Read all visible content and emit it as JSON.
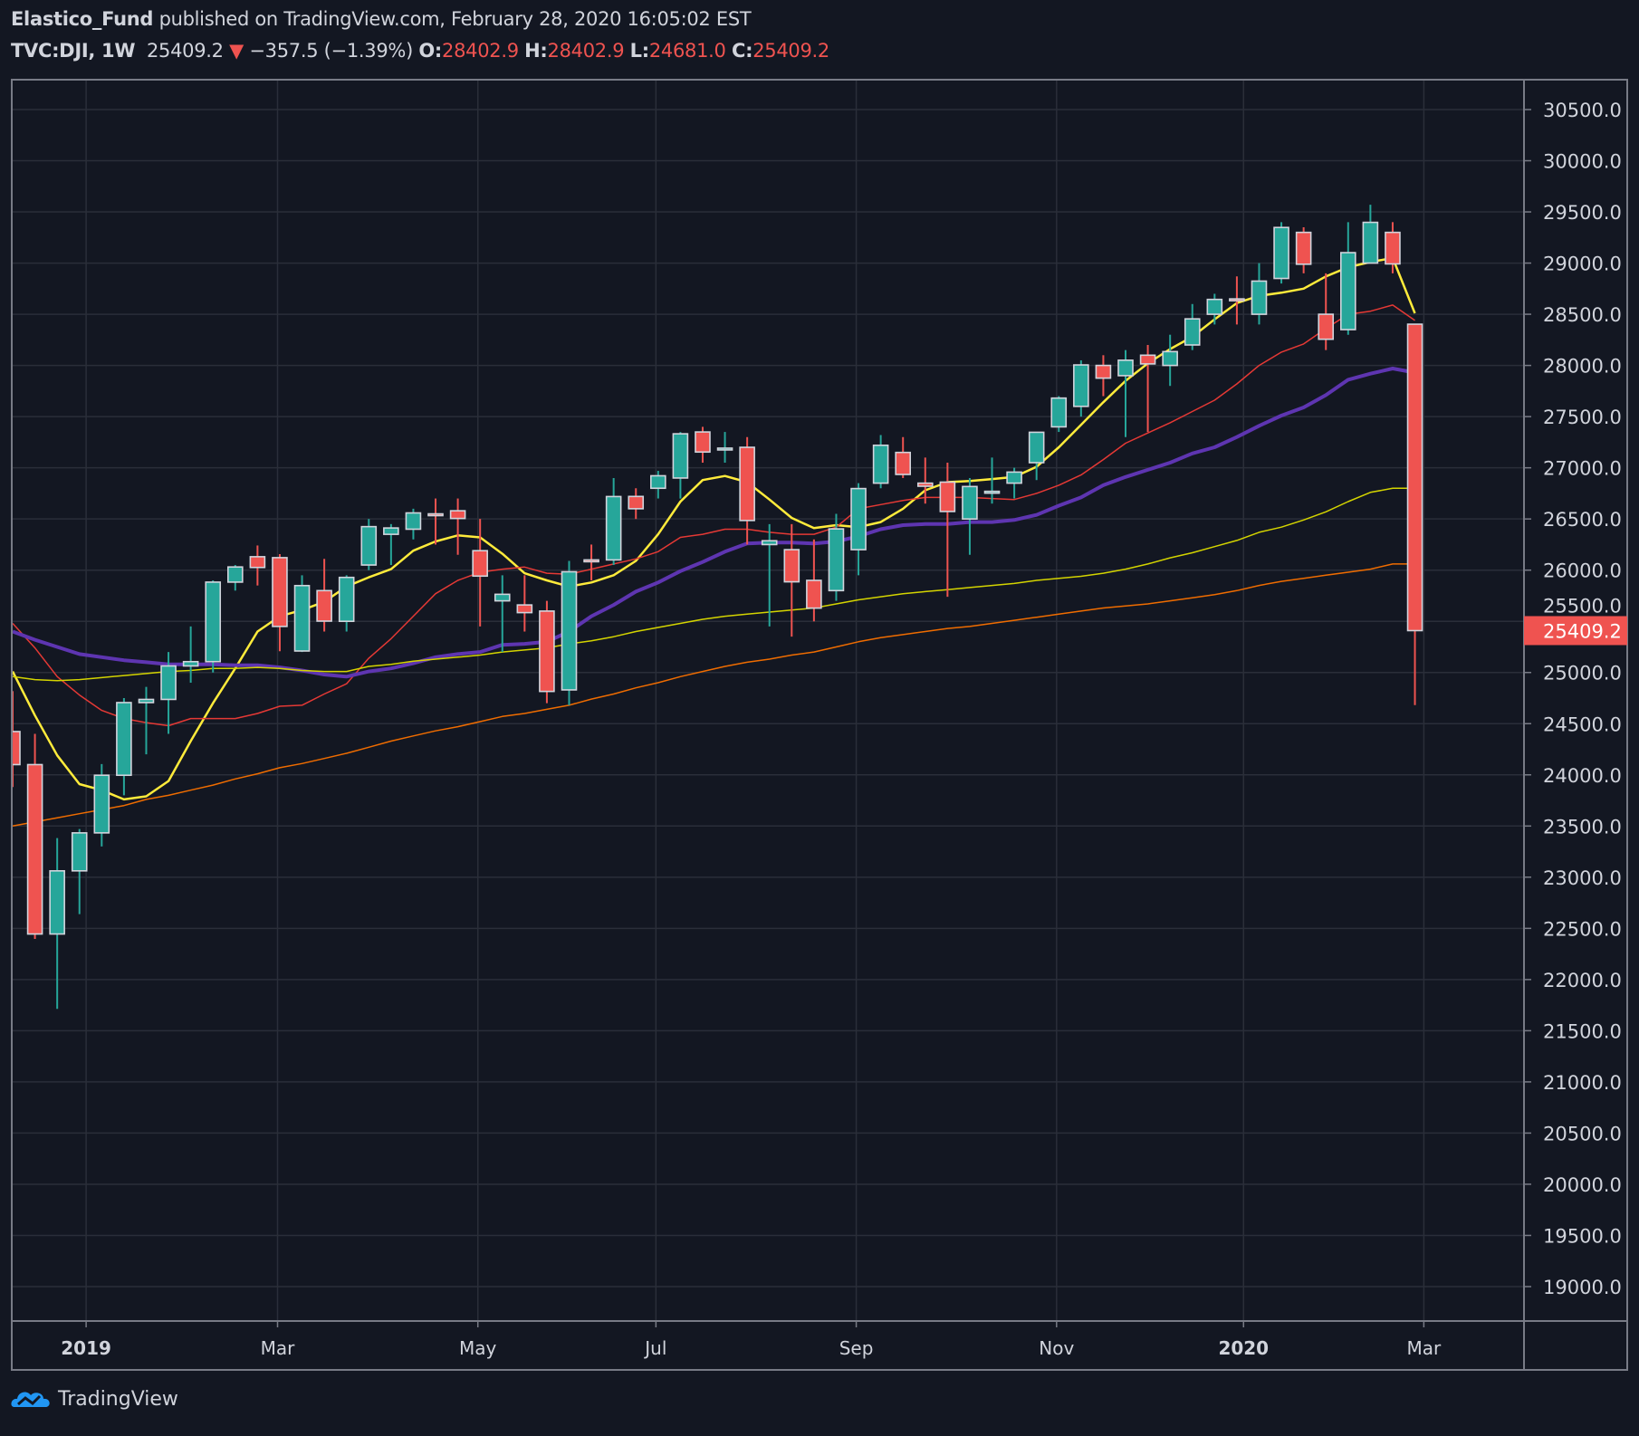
{
  "header": {
    "author": "Elastico_Fund",
    "published": "published on TradingView.com, February 28, 2020 16:05:02 EST",
    "symbol": "TVC:DJI, 1W",
    "last": "25409.2",
    "change": "−357.5 (−1.39%)",
    "o_label": "O:",
    "o": "28402.9",
    "h_label": "H:",
    "h": "28402.9",
    "l_label": "L:",
    "l": "24681.0",
    "c_label": "C:",
    "c": "25409.2"
  },
  "footer": {
    "brand": "TradingView"
  },
  "colors": {
    "background": "#131722",
    "grid": "#2a2e39",
    "up": "#26a69a",
    "down": "#ef5350",
    "text": "#d1d4dc"
  },
  "chart_data": {
    "type": "candlestick",
    "interval": "1W",
    "ylim": [
      18700,
      30800
    ],
    "y_ticks": [
      "30500.0",
      "30000.0",
      "29500.0",
      "29000.0",
      "28500.0",
      "28000.0",
      "27500.0",
      "27000.0",
      "26500.0",
      "26000.0",
      "25500.0",
      "25000.0",
      "24500.0",
      "24000.0",
      "23500.0",
      "23000.0",
      "22500.0",
      "22000.0",
      "21500.0",
      "21000.0",
      "20500.0",
      "20000.0",
      "19500.0",
      "19000.0"
    ],
    "x_ticks": [
      {
        "label": "2019",
        "week": 3.3
      },
      {
        "label": "Mar",
        "week": 11.9
      },
      {
        "label": "May",
        "week": 20.9
      },
      {
        "label": "Jul",
        "week": 28.9
      },
      {
        "label": "Sep",
        "week": 37.9
      },
      {
        "label": "Nov",
        "week": 46.9
      },
      {
        "label": "2020",
        "week": 55.3
      },
      {
        "label": "Mar",
        "week": 63.4
      }
    ],
    "x_tick_bold": [
      "2019",
      "2020"
    ],
    "last_price_label": "25409.2",
    "grid": true,
    "first_week": "2018-12-10",
    "ohlc": [
      [
        24423,
        24818,
        23881,
        24100
      ],
      [
        24100,
        24400,
        22397,
        22445
      ],
      [
        22445,
        23382,
        21713,
        23062
      ],
      [
        23062,
        23471,
        22639,
        23433
      ],
      [
        23433,
        24105,
        23300,
        23996
      ],
      [
        23996,
        24750,
        23800,
        24706
      ],
      [
        24706,
        24860,
        24200,
        24737
      ],
      [
        24737,
        25200,
        24400,
        25064
      ],
      [
        25064,
        25450,
        24900,
        25106
      ],
      [
        25106,
        25900,
        25000,
        25883
      ],
      [
        25883,
        26050,
        25800,
        26031
      ],
      [
        26131,
        26241,
        25850,
        26026
      ],
      [
        26122,
        26156,
        25208,
        25450
      ],
      [
        25210,
        25950,
        25200,
        25849
      ],
      [
        25800,
        26110,
        25400,
        25502
      ],
      [
        25500,
        25950,
        25400,
        25929
      ],
      [
        26050,
        26500,
        26000,
        26425
      ],
      [
        26350,
        26450,
        26050,
        26412
      ],
      [
        26400,
        26600,
        26300,
        26559
      ],
      [
        26550,
        26700,
        26250,
        26543
      ],
      [
        26580,
        26700,
        26150,
        26505
      ],
      [
        26190,
        26500,
        25450,
        25942
      ],
      [
        25700,
        25950,
        25200,
        25764
      ],
      [
        25660,
        25950,
        25400,
        25585
      ],
      [
        25600,
        25700,
        24700,
        24815
      ],
      [
        24830,
        26090,
        24680,
        25984
      ],
      [
        26100,
        26250,
        25900,
        26090
      ],
      [
        26100,
        26900,
        26050,
        26719
      ],
      [
        26720,
        26800,
        26500,
        26600
      ],
      [
        26800,
        26970,
        26700,
        26922
      ],
      [
        26900,
        27350,
        26700,
        27332
      ],
      [
        27350,
        27400,
        27050,
        27154
      ],
      [
        27180,
        27350,
        27050,
        27192
      ],
      [
        27200,
        27300,
        26250,
        26485
      ],
      [
        26250,
        26450,
        25450,
        26287
      ],
      [
        26200,
        26450,
        25350,
        25886
      ],
      [
        25900,
        26300,
        25500,
        25629
      ],
      [
        25800,
        26550,
        25700,
        26403
      ],
      [
        26200,
        26850,
        25950,
        26797
      ],
      [
        26850,
        27320,
        26800,
        27220
      ],
      [
        27150,
        27300,
        26900,
        26935
      ],
      [
        26850,
        27100,
        26650,
        26820
      ],
      [
        26860,
        27050,
        25740,
        26573
      ],
      [
        26500,
        26900,
        26150,
        26817
      ],
      [
        26770,
        27100,
        26650,
        26770
      ],
      [
        26850,
        27000,
        26700,
        26958
      ],
      [
        27050,
        27350,
        26880,
        27347
      ],
      [
        27400,
        27700,
        27350,
        27681
      ],
      [
        27600,
        28050,
        27500,
        28005
      ],
      [
        28000,
        28100,
        27700,
        27876
      ],
      [
        27900,
        28150,
        27300,
        28051
      ],
      [
        28100,
        28200,
        27350,
        28015
      ],
      [
        28000,
        28300,
        27800,
        28135
      ],
      [
        28200,
        28600,
        28150,
        28455
      ],
      [
        28500,
        28700,
        28400,
        28645
      ],
      [
        28650,
        28870,
        28400,
        28634
      ],
      [
        28500,
        29000,
        28400,
        28824
      ],
      [
        28850,
        29400,
        28800,
        29348
      ],
      [
        29300,
        29350,
        28900,
        28989
      ],
      [
        28500,
        28900,
        28150,
        28256
      ],
      [
        28350,
        29400,
        28300,
        29102
      ],
      [
        29000,
        29570,
        29000,
        29398
      ],
      [
        29300,
        29400,
        28900,
        28992
      ],
      [
        28402.9,
        28402.9,
        24681.0,
        25409.2
      ]
    ],
    "moving_averages": [
      {
        "color": "#ffeb3b",
        "thickness": "medium",
        "values": [
          25010,
          24580,
          24190,
          23910,
          23850,
          23760,
          23790,
          23940,
          24330,
          24700,
          25040,
          25400,
          25550,
          25610,
          25690,
          25840,
          25930,
          26010,
          26190,
          26280,
          26340,
          26320,
          26160,
          25970,
          25900,
          25840,
          25880,
          25950,
          26090,
          26350,
          26670,
          26880,
          26920,
          26860,
          26690,
          26510,
          26410,
          26440,
          26420,
          26470,
          26600,
          26780,
          26860,
          26870,
          26890,
          26910,
          27010,
          27200,
          27420,
          27640,
          27850,
          28020,
          28160,
          28280,
          28450,
          28610,
          28680,
          28710,
          28750,
          28870,
          28960,
          29010,
          29050,
          28510
        ]
      },
      {
        "color": "#e53935",
        "thickness": "thin",
        "values": [
          25480,
          25240,
          24960,
          24780,
          24630,
          24550,
          24510,
          24480,
          24550,
          24550,
          24550,
          24600,
          24670,
          24680,
          24790,
          24890,
          25140,
          25330,
          25550,
          25770,
          25900,
          25980,
          26010,
          26030,
          25970,
          25960,
          26010,
          26060,
          26110,
          26180,
          26320,
          26350,
          26400,
          26400,
          26370,
          26350,
          26350,
          26420,
          26600,
          26640,
          26680,
          26710,
          26710,
          26710,
          26700,
          26690,
          26750,
          26830,
          26930,
          27080,
          27240,
          27340,
          27440,
          27550,
          27660,
          27820,
          28000,
          28130,
          28210,
          28360,
          28500,
          28530,
          28590,
          28440
        ]
      },
      {
        "color": "#5e35b1",
        "thickness": "thick",
        "values": [
          25400,
          25320,
          25250,
          25180,
          25150,
          25120,
          25100,
          25080,
          25080,
          25080,
          25070,
          25070,
          25050,
          25020,
          24980,
          24960,
          25010,
          25040,
          25090,
          25150,
          25180,
          25200,
          25270,
          25280,
          25300,
          25400,
          25550,
          25660,
          25790,
          25880,
          25990,
          26080,
          26180,
          26260,
          26270,
          26270,
          26260,
          26280,
          26330,
          26400,
          26440,
          26450,
          26450,
          26470,
          26470,
          26490,
          26540,
          26630,
          26710,
          26830,
          26910,
          26980,
          27050,
          27140,
          27200,
          27300,
          27410,
          27510,
          27590,
          27710,
          27860,
          27920,
          27970,
          27930
        ]
      },
      {
        "color": "#d4d400",
        "thickness": "thin",
        "values": [
          24960,
          24930,
          24920,
          24930,
          24950,
          24970,
          24990,
          25010,
          25020,
          25040,
          25040,
          25050,
          25040,
          25020,
          25010,
          25010,
          25060,
          25080,
          25110,
          25130,
          25150,
          25170,
          25200,
          25220,
          25240,
          25280,
          25310,
          25350,
          25400,
          25440,
          25480,
          25520,
          25550,
          25570,
          25590,
          25610,
          25630,
          25670,
          25710,
          25740,
          25770,
          25790,
          25810,
          25830,
          25850,
          25870,
          25900,
          25920,
          25940,
          25970,
          26010,
          26060,
          26120,
          26170,
          26230,
          26290,
          26370,
          26420,
          26490,
          26570,
          26670,
          26760,
          26800,
          26800
        ]
      },
      {
        "color": "#ef6c00",
        "thickness": "thin",
        "values": [
          23500,
          23540,
          23580,
          23620,
          23660,
          23700,
          23760,
          23800,
          23850,
          23900,
          23960,
          24010,
          24070,
          24110,
          24160,
          24210,
          24270,
          24330,
          24380,
          24430,
          24470,
          24520,
          24570,
          24600,
          24640,
          24680,
          24740,
          24790,
          24850,
          24900,
          24960,
          25010,
          25060,
          25100,
          25130,
          25170,
          25200,
          25250,
          25300,
          25340,
          25370,
          25400,
          25430,
          25450,
          25480,
          25510,
          25540,
          25570,
          25600,
          25630,
          25650,
          25670,
          25700,
          25730,
          25760,
          25800,
          25850,
          25890,
          25920,
          25950,
          25980,
          26010,
          26060,
          26060
        ]
      }
    ]
  }
}
